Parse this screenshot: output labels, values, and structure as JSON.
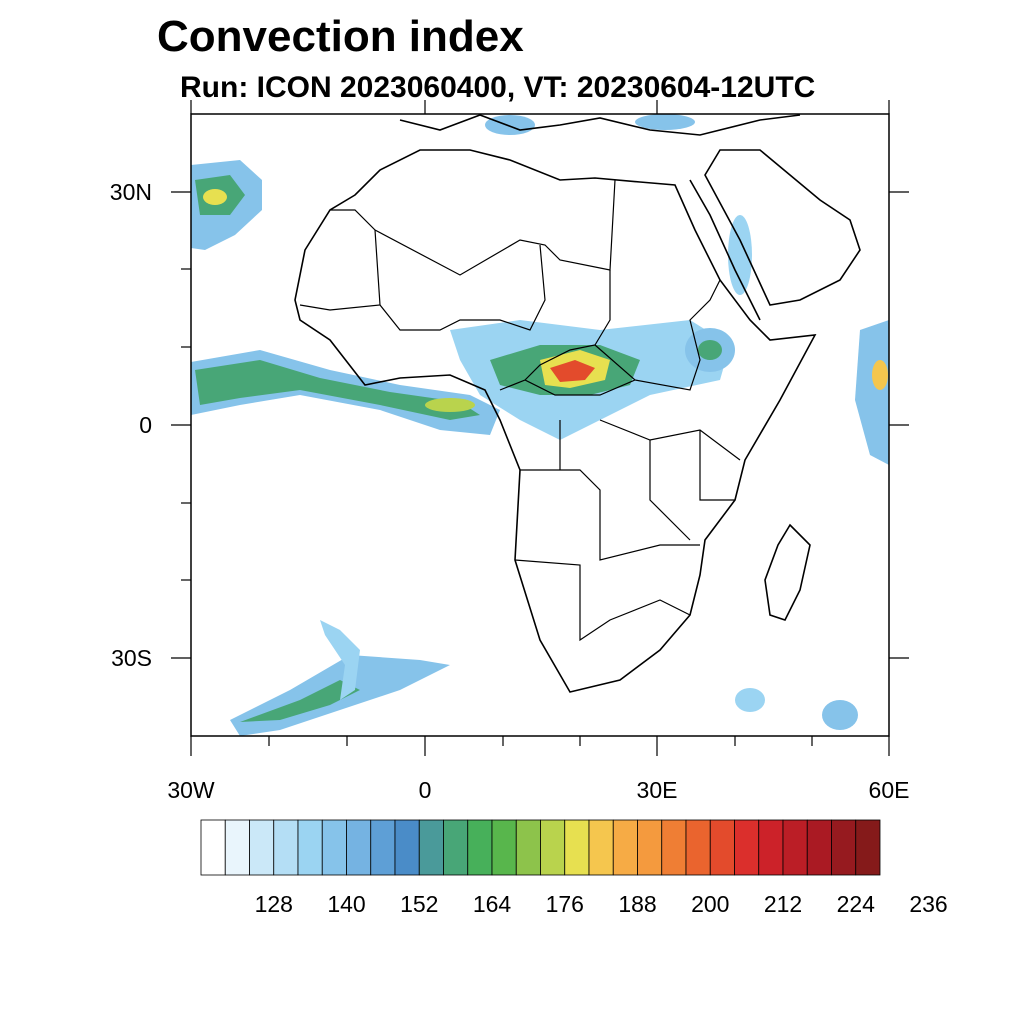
{
  "title": "Convection index",
  "subtitle": "Run: ICON 2023060400,  VT: 20230604-12UTC",
  "map": {
    "lat_labels": [
      "30N",
      "0",
      "30S"
    ],
    "lon_labels": [
      "30W",
      "0",
      "30E",
      "60E"
    ],
    "lat_range": [
      -40,
      40
    ],
    "lon_range": [
      -30,
      60
    ]
  },
  "colorbar": {
    "labels": [
      "128",
      "140",
      "152",
      "164",
      "176",
      "188",
      "200",
      "212",
      "224",
      "236"
    ],
    "colors": [
      "#ffffff",
      "#e9f5fc",
      "#cbe8f8",
      "#b4def5",
      "#9bd4f2",
      "#86c3ea",
      "#75b3e2",
      "#5e9fd6",
      "#4a8cc8",
      "#4a9a9a",
      "#48a677",
      "#47b05a",
      "#58b64c",
      "#8dc34b",
      "#b9d34d",
      "#e7e050",
      "#f5c64e",
      "#f6ab45",
      "#f49a3e",
      "#ef7e34",
      "#ea642e",
      "#e34b2c",
      "#db2f2c",
      "#cc2229",
      "#bb1e26",
      "#aa1a23",
      "#961a1f",
      "#851a1a"
    ]
  }
}
